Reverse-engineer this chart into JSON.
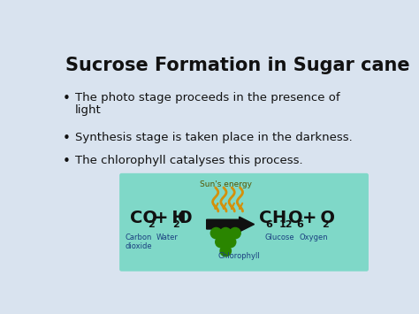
{
  "title": "Sucrose Formation in Sugar cane",
  "bullet1_line1": "The photo stage proceeds in the presence of",
  "bullet1_line2": "light",
  "bullet2": "Synthesis stage is taken place in the darkness.",
  "bullet3": "The chlorophyll catalyses this process.",
  "bg_color": "#d9e3ef",
  "box_color": "#7fd8c8",
  "title_color": "#111111",
  "bullet_color": "#111111",
  "label_co2": "Carbon\ndioxide",
  "label_h2o": "Water",
  "label_chlorophyll": "Chlorophyll",
  "label_glucose": "Glucose",
  "label_oxygen": "Oxygen",
  "suns_energy": "Sun's energy",
  "arrow_color": "#111111",
  "sun_color": "#d4900a",
  "chlorophyll_color": "#2a8500",
  "eq_color": "#111111",
  "label_color": "#1a4080"
}
